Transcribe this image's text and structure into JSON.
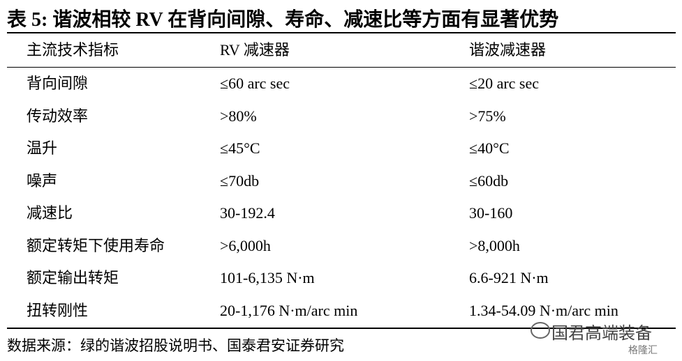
{
  "header": {
    "title": "表 5: 谐波相较 RV 在背向间隙、寿命、减速比等方面有显著优势"
  },
  "table": {
    "columns": [
      "主流技术指标",
      "RV 减速器",
      "谐波减速器"
    ],
    "rows": [
      [
        "背向间隙",
        "≤60 arc sec",
        "≤20 arc sec"
      ],
      [
        "传动效率",
        ">80%",
        ">75%"
      ],
      [
        "温升",
        "≤45°C",
        "≤40°C"
      ],
      [
        "噪声",
        "≤70db",
        "≤60db"
      ],
      [
        "减速比",
        "30-192.4",
        "30-160"
      ],
      [
        "额定转矩下使用寿命",
        ">6,000h",
        ">8,000h"
      ],
      [
        "额定输出转矩",
        "101-6,135 N·m",
        "6.6-921 N·m"
      ],
      [
        "扭转刚性",
        "20-1,176 N·m/arc min",
        "1.34-54.09 N·m/arc min"
      ]
    ]
  },
  "footer": {
    "source": "数据来源：绿的谐波招股说明书、国泰君安证券研究"
  },
  "watermark": {
    "account": "国君高端装备",
    "site": "格隆汇"
  }
}
